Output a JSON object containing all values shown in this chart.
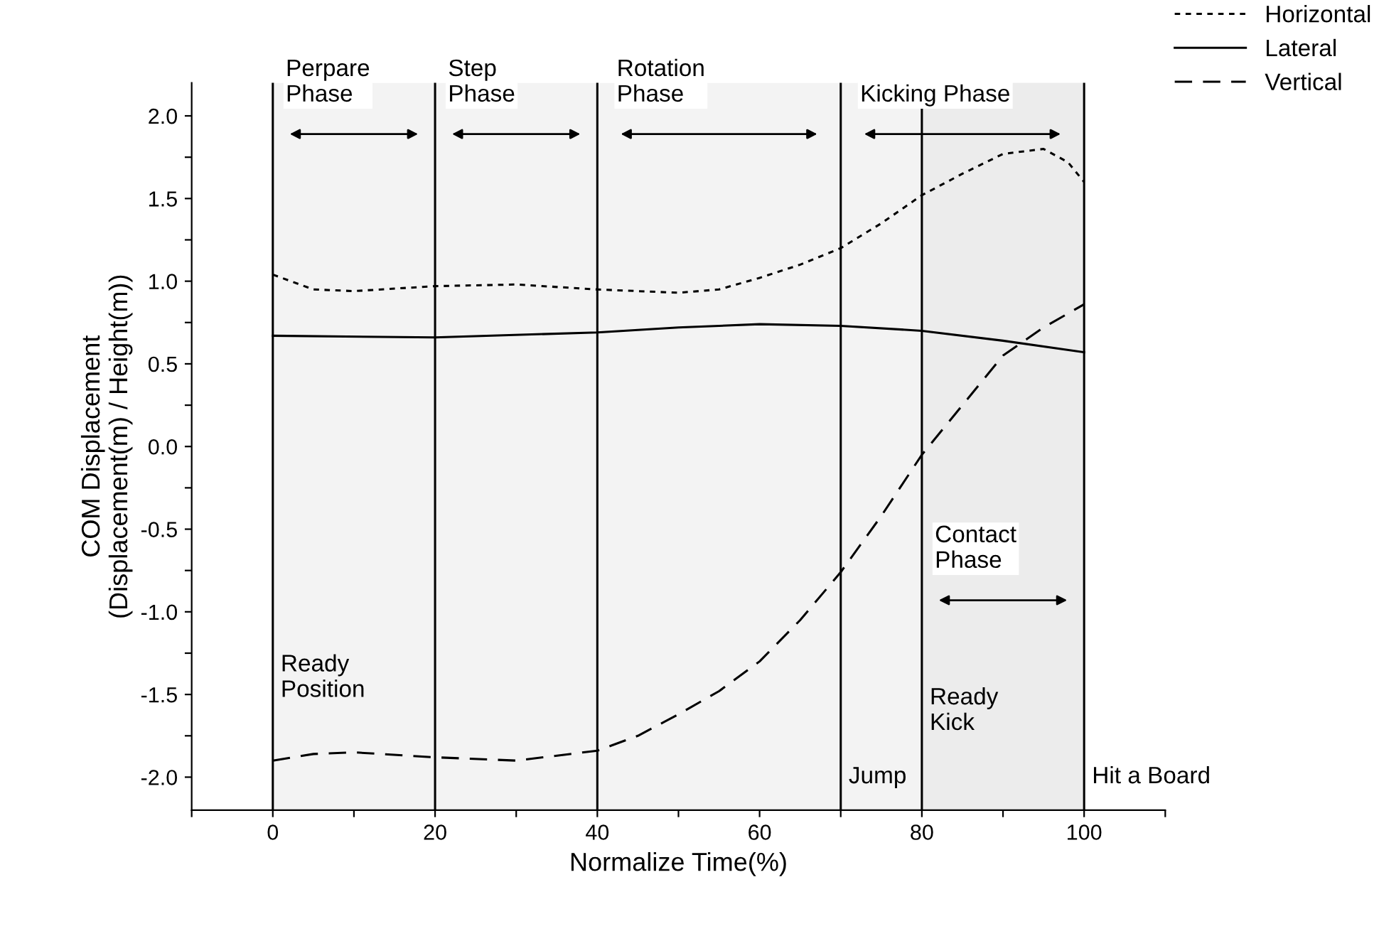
{
  "chart_data": {
    "type": "line",
    "xlabel": "Normalize Time(%)",
    "ylabel": "COM Displacement\n(Displacement(m) / Height(m))",
    "xlim": [
      -10,
      110
    ],
    "ylim": [
      -2.2,
      2.2
    ],
    "xticks": [
      {
        "value": -10,
        "label": null
      },
      0,
      {
        "value": 10,
        "label": null
      },
      20,
      {
        "value": 30,
        "label": null
      },
      40,
      {
        "value": 50,
        "label": null
      },
      60,
      {
        "value": 70,
        "label": null
      },
      80,
      {
        "value": 90,
        "label": null
      },
      100,
      {
        "value": 110,
        "label": null
      }
    ],
    "yticks": [
      {
        "value": -2.0,
        "label": "-2.0"
      },
      {
        "value": -1.75,
        "label": null
      },
      {
        "value": -1.5,
        "label": "-1.5"
      },
      {
        "value": -1.25,
        "label": null
      },
      {
        "value": -1.0,
        "label": "-1.0"
      },
      {
        "value": -0.75,
        "label": null
      },
      {
        "value": -0.5,
        "label": "-0.5"
      },
      {
        "value": -0.25,
        "label": null
      },
      {
        "value": 0.0,
        "label": "0.0"
      },
      {
        "value": 0.25,
        "label": null
      },
      {
        "value": 0.5,
        "label": "0.5"
      },
      {
        "value": 0.75,
        "label": null
      },
      {
        "value": 1.0,
        "label": "1.0"
      },
      {
        "value": 1.25,
        "label": null
      },
      {
        "value": 1.5,
        "label": "1.5"
      },
      {
        "value": 1.75,
        "label": null
      },
      {
        "value": 2.0,
        "label": "2.0"
      }
    ],
    "grid": false,
    "legend": "top right",
    "series": [
      {
        "name": "Horizontal",
        "color": "#000000",
        "line_style": "dotted",
        "x": [
          0,
          5,
          10,
          20,
          30,
          40,
          50,
          55,
          60,
          65,
          70,
          75,
          80,
          85,
          90,
          95,
          98,
          100
        ],
        "values": [
          1.04,
          0.95,
          0.94,
          0.97,
          0.98,
          0.95,
          0.93,
          0.95,
          1.02,
          1.1,
          1.2,
          1.35,
          1.52,
          1.65,
          1.77,
          1.8,
          1.72,
          1.6
        ]
      },
      {
        "name": "Lateral",
        "color": "#000000",
        "line_style": "solid",
        "x": [
          0,
          20,
          40,
          50,
          60,
          70,
          80,
          90,
          100
        ],
        "values": [
          0.67,
          0.66,
          0.69,
          0.72,
          0.74,
          0.73,
          0.7,
          0.64,
          0.57
        ]
      },
      {
        "name": "Vertical",
        "color": "#000000",
        "line_style": "dashed",
        "x": [
          0,
          5,
          10,
          20,
          30,
          40,
          45,
          50,
          55,
          60,
          65,
          70,
          75,
          80,
          85,
          90,
          95,
          100
        ],
        "values": [
          -1.9,
          -1.86,
          -1.85,
          -1.88,
          -1.9,
          -1.84,
          -1.75,
          -1.62,
          -1.48,
          -1.3,
          -1.05,
          -0.76,
          -0.42,
          -0.05,
          0.25,
          0.55,
          0.72,
          0.86
        ]
      }
    ],
    "ref_lines": [
      {
        "axis": "x",
        "value": 0
      },
      {
        "axis": "x",
        "value": 20
      },
      {
        "axis": "x",
        "value": 40
      },
      {
        "axis": "x",
        "value": 70
      },
      {
        "axis": "x",
        "value": 80
      },
      {
        "axis": "x",
        "value": 100
      }
    ],
    "bands": [
      {
        "axis": "x",
        "from": 0,
        "to": 20,
        "label": "Perpare\nPhase",
        "color": "#f3f3f3"
      },
      {
        "axis": "x",
        "from": 20,
        "to": 40,
        "label": "Step\nPhase",
        "color": "#f3f3f3"
      },
      {
        "axis": "x",
        "from": 40,
        "to": 70,
        "label": "Rotation\nPhase",
        "color": "#f3f3f3"
      },
      {
        "axis": "x",
        "from": 70,
        "to": 100,
        "label": "Kicking Phase",
        "color": "#f3f3f3"
      },
      {
        "axis": "x",
        "from": 80,
        "to": 100,
        "label": "Contact\nPhase",
        "color": "#ececec"
      }
    ],
    "annotations": [
      {
        "text": "Ready\nPosition",
        "x": 0,
        "y": -1.4
      },
      {
        "text": "Jump",
        "x": 70,
        "y": -2.0
      },
      {
        "text": "Ready\nKick",
        "x": 80,
        "y": -1.6
      },
      {
        "text": "Hit a Board",
        "x": 100,
        "y": -2.0
      }
    ]
  }
}
